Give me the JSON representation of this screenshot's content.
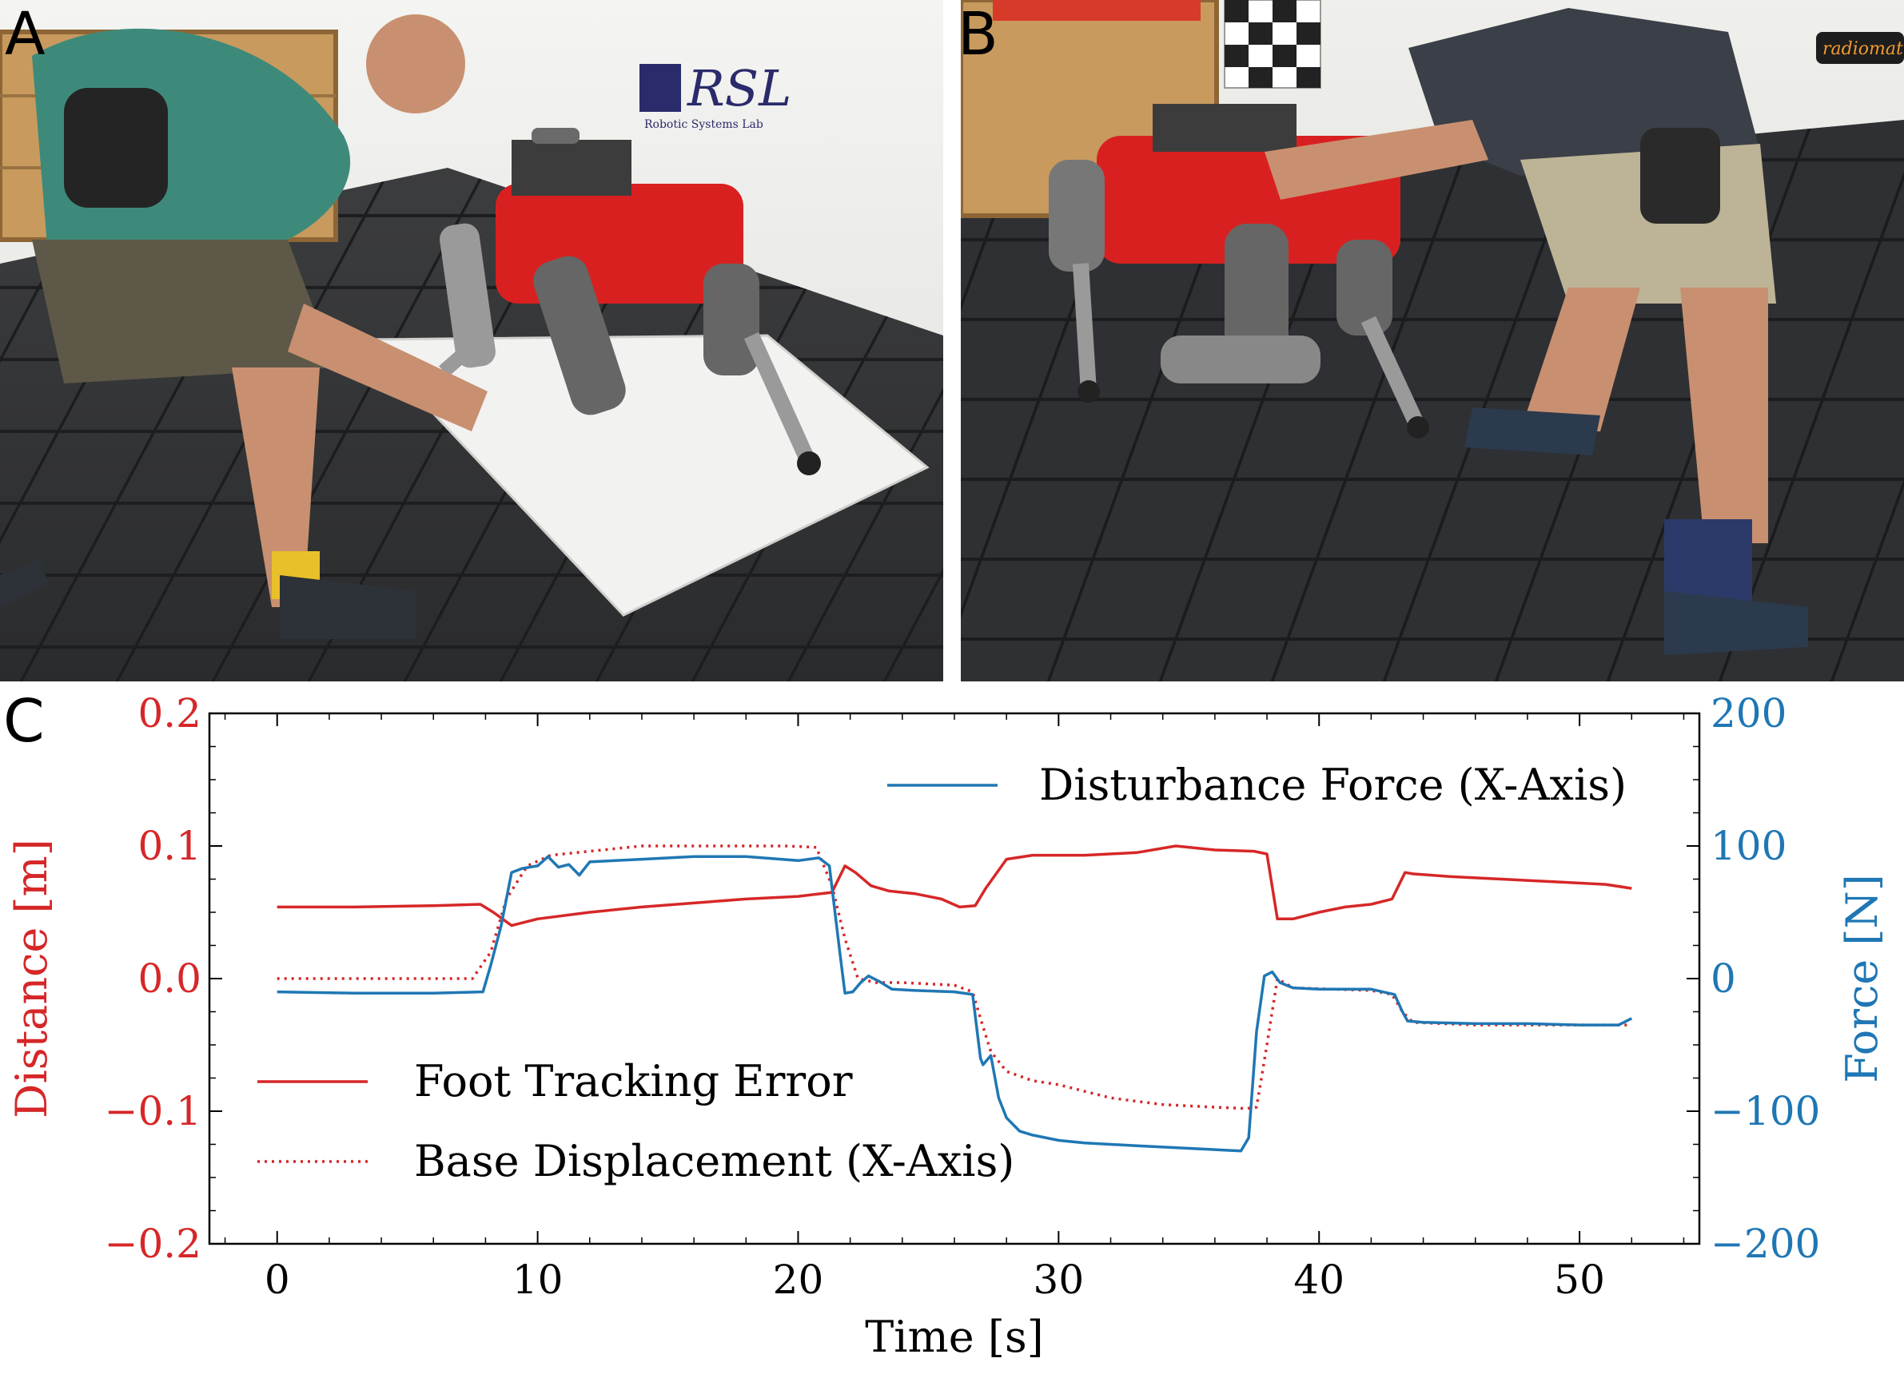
{
  "panels": {
    "a": {
      "letter": "A",
      "logo": "RSL",
      "logo_sub": "Robotic Systems Lab"
    },
    "b": {
      "letter": "B",
      "badge": "radiomatic"
    },
    "c": {
      "letter": "C"
    }
  },
  "colors": {
    "red": "#d62728",
    "blue": "#1f77b4"
  },
  "chart_data": {
    "type": "line",
    "title": "",
    "xlabel": "Time [s]",
    "ylabel_left": "Distance [m]",
    "ylabel_right": "Force [N]",
    "xlim": [
      -2.6,
      54.6
    ],
    "ylim_left": [
      -0.2,
      0.2
    ],
    "ylim_right": [
      -200,
      200
    ],
    "xticks": [
      0,
      10,
      20,
      30,
      40,
      50
    ],
    "xtick_labels": [
      "0",
      "10",
      "20",
      "30",
      "40",
      "50"
    ],
    "yticks_left": [
      -0.2,
      -0.1,
      0.0,
      0.1,
      0.2
    ],
    "ytick_labels_left": [
      "−0.2",
      "−0.1",
      "0.0",
      "0.1",
      "0.2"
    ],
    "yticks_right": [
      -200,
      -100,
      0,
      100,
      200
    ],
    "ytick_labels_right": [
      "−200",
      "−100",
      "0",
      "100",
      "200"
    ],
    "legend_top": {
      "label": "Disturbance Force (X-Axis)",
      "placement": "upper-right"
    },
    "legend_bottom": [
      {
        "label": "Foot Tracking Error",
        "style": "solid"
      },
      {
        "label": "Base Displacement (X-Axis)",
        "style": "dotted"
      }
    ],
    "series": [
      {
        "name": "Foot Tracking Error",
        "axis": "left",
        "color": "red",
        "style": "solid",
        "x": [
          0,
          3,
          6,
          7.8,
          8.3,
          9.0,
          10,
          12,
          14,
          16,
          18,
          20,
          21.3,
          21.8,
          22.2,
          22.8,
          23.5,
          24.5,
          25.5,
          26.2,
          26.8,
          27.2,
          28.0,
          29,
          31,
          33,
          34.5,
          36,
          37.5,
          38.0,
          38.4,
          39,
          40,
          41,
          42,
          42.8,
          43.3,
          43.6,
          45,
          47,
          49,
          51,
          52
        ],
        "y": [
          0.054,
          0.054,
          0.055,
          0.056,
          0.05,
          0.04,
          0.045,
          0.05,
          0.054,
          0.057,
          0.06,
          0.062,
          0.065,
          0.085,
          0.08,
          0.07,
          0.066,
          0.064,
          0.06,
          0.054,
          0.055,
          0.068,
          0.09,
          0.093,
          0.093,
          0.095,
          0.1,
          0.097,
          0.096,
          0.094,
          0.045,
          0.045,
          0.05,
          0.054,
          0.056,
          0.06,
          0.08,
          0.079,
          0.077,
          0.075,
          0.073,
          0.071,
          0.068
        ]
      },
      {
        "name": "Base Displacement (X-Axis)",
        "axis": "left",
        "color": "red",
        "style": "dotted",
        "x": [
          0,
          7.5,
          8.2,
          8.8,
          9.6,
          10.5,
          12,
          14,
          17,
          19.5,
          20.7,
          21.3,
          21.8,
          22.3,
          23.0,
          24,
          26,
          26.7,
          27.0,
          27.4,
          28.0,
          29,
          30,
          32,
          34,
          36,
          37.2,
          37.6,
          38.0,
          38.4,
          39,
          42,
          42.8,
          43.2,
          43.6,
          46,
          49,
          52
        ],
        "y": [
          0.0,
          0.0,
          0.02,
          0.06,
          0.085,
          0.093,
          0.096,
          0.1,
          0.1,
          0.1,
          0.099,
          0.07,
          0.03,
          0.0,
          -0.003,
          -0.003,
          -0.005,
          -0.01,
          -0.03,
          -0.055,
          -0.07,
          -0.077,
          -0.08,
          -0.09,
          -0.095,
          -0.097,
          -0.098,
          -0.097,
          -0.05,
          0.0,
          -0.007,
          -0.009,
          -0.012,
          -0.025,
          -0.033,
          -0.035,
          -0.035,
          -0.035
        ]
      },
      {
        "name": "Disturbance Force (X-Axis)",
        "axis": "right",
        "color": "blue",
        "style": "solid",
        "x": [
          0,
          3,
          6,
          7.9,
          8.2,
          8.6,
          9.0,
          9.4,
          10.0,
          10.4,
          10.8,
          11.2,
          11.6,
          12,
          14,
          16,
          18,
          20,
          20.8,
          21.2,
          21.6,
          21.8,
          22.1,
          22.4,
          22.7,
          23.1,
          23.6,
          24.5,
          26,
          26.7,
          27.0,
          27.1,
          27.4,
          27.7,
          28.0,
          28.5,
          29,
          30,
          31,
          33,
          35,
          37,
          37.3,
          37.6,
          37.9,
          38.2,
          38.5,
          39,
          40,
          42,
          42.9,
          43.2,
          43.4,
          44,
          46,
          48,
          50,
          51.5,
          52
        ],
        "y": [
          -10,
          -11,
          -11,
          -10,
          10,
          40,
          80,
          83,
          85,
          92,
          84,
          86,
          78,
          88,
          90,
          92,
          92,
          89,
          91,
          85,
          20,
          -11,
          -10,
          -3,
          2,
          -2,
          -8,
          -9,
          -10,
          -12,
          -60,
          -65,
          -58,
          -90,
          -105,
          -115,
          -118,
          -122,
          -124,
          -126,
          -128,
          -130,
          -120,
          -40,
          2,
          5,
          -3,
          -7,
          -8,
          -8,
          -12,
          -25,
          -32,
          -33,
          -34,
          -34,
          -35,
          -35,
          -30
        ]
      }
    ]
  }
}
